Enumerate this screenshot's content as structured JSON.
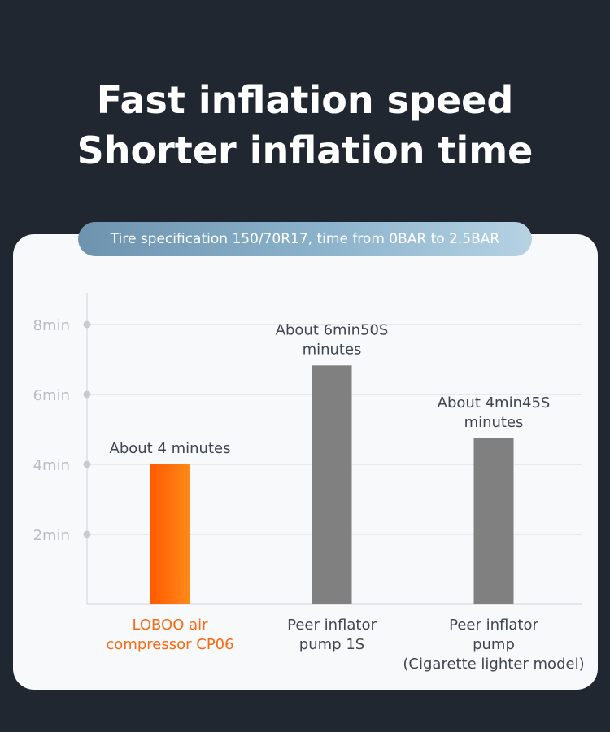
{
  "headline": {
    "line1": "Fast inflation speed",
    "line2": "Shorter inflation time"
  },
  "subtitle": "Tire specification 150/70R17, time from 0BAR to 2.5BAR",
  "colors": {
    "background": "#212730",
    "card": "#f8f9fb",
    "highlight": "#ff6a00",
    "peer": "#808080",
    "grid": "#d7d9dd",
    "axis_text": "#b9bcc2"
  },
  "chart_data": {
    "type": "bar",
    "ylim": [
      0,
      8
    ],
    "yticks": [
      2,
      4,
      6,
      8
    ],
    "ytick_labels": [
      "2min",
      "4min",
      "6min",
      "8min"
    ],
    "grid": true,
    "categories": [
      "LOBOO air compressor CP06",
      "Peer inflator pump 1S",
      "Peer inflator pump (Cigarette lighter model)"
    ],
    "category_labels": [
      "LOBOO air\ncompressor CP06",
      "Peer inflator\npump 1S",
      "Peer inflator\npump\n(Cigarette lighter model)"
    ],
    "values": [
      4,
      6.83,
      4.75
    ],
    "data_labels": [
      "About 4 minutes",
      "About 6min50S\nminutes",
      "About 4min45S\nminutes"
    ],
    "bar_colors": [
      "#ff6a00",
      "#808080",
      "#808080"
    ]
  }
}
